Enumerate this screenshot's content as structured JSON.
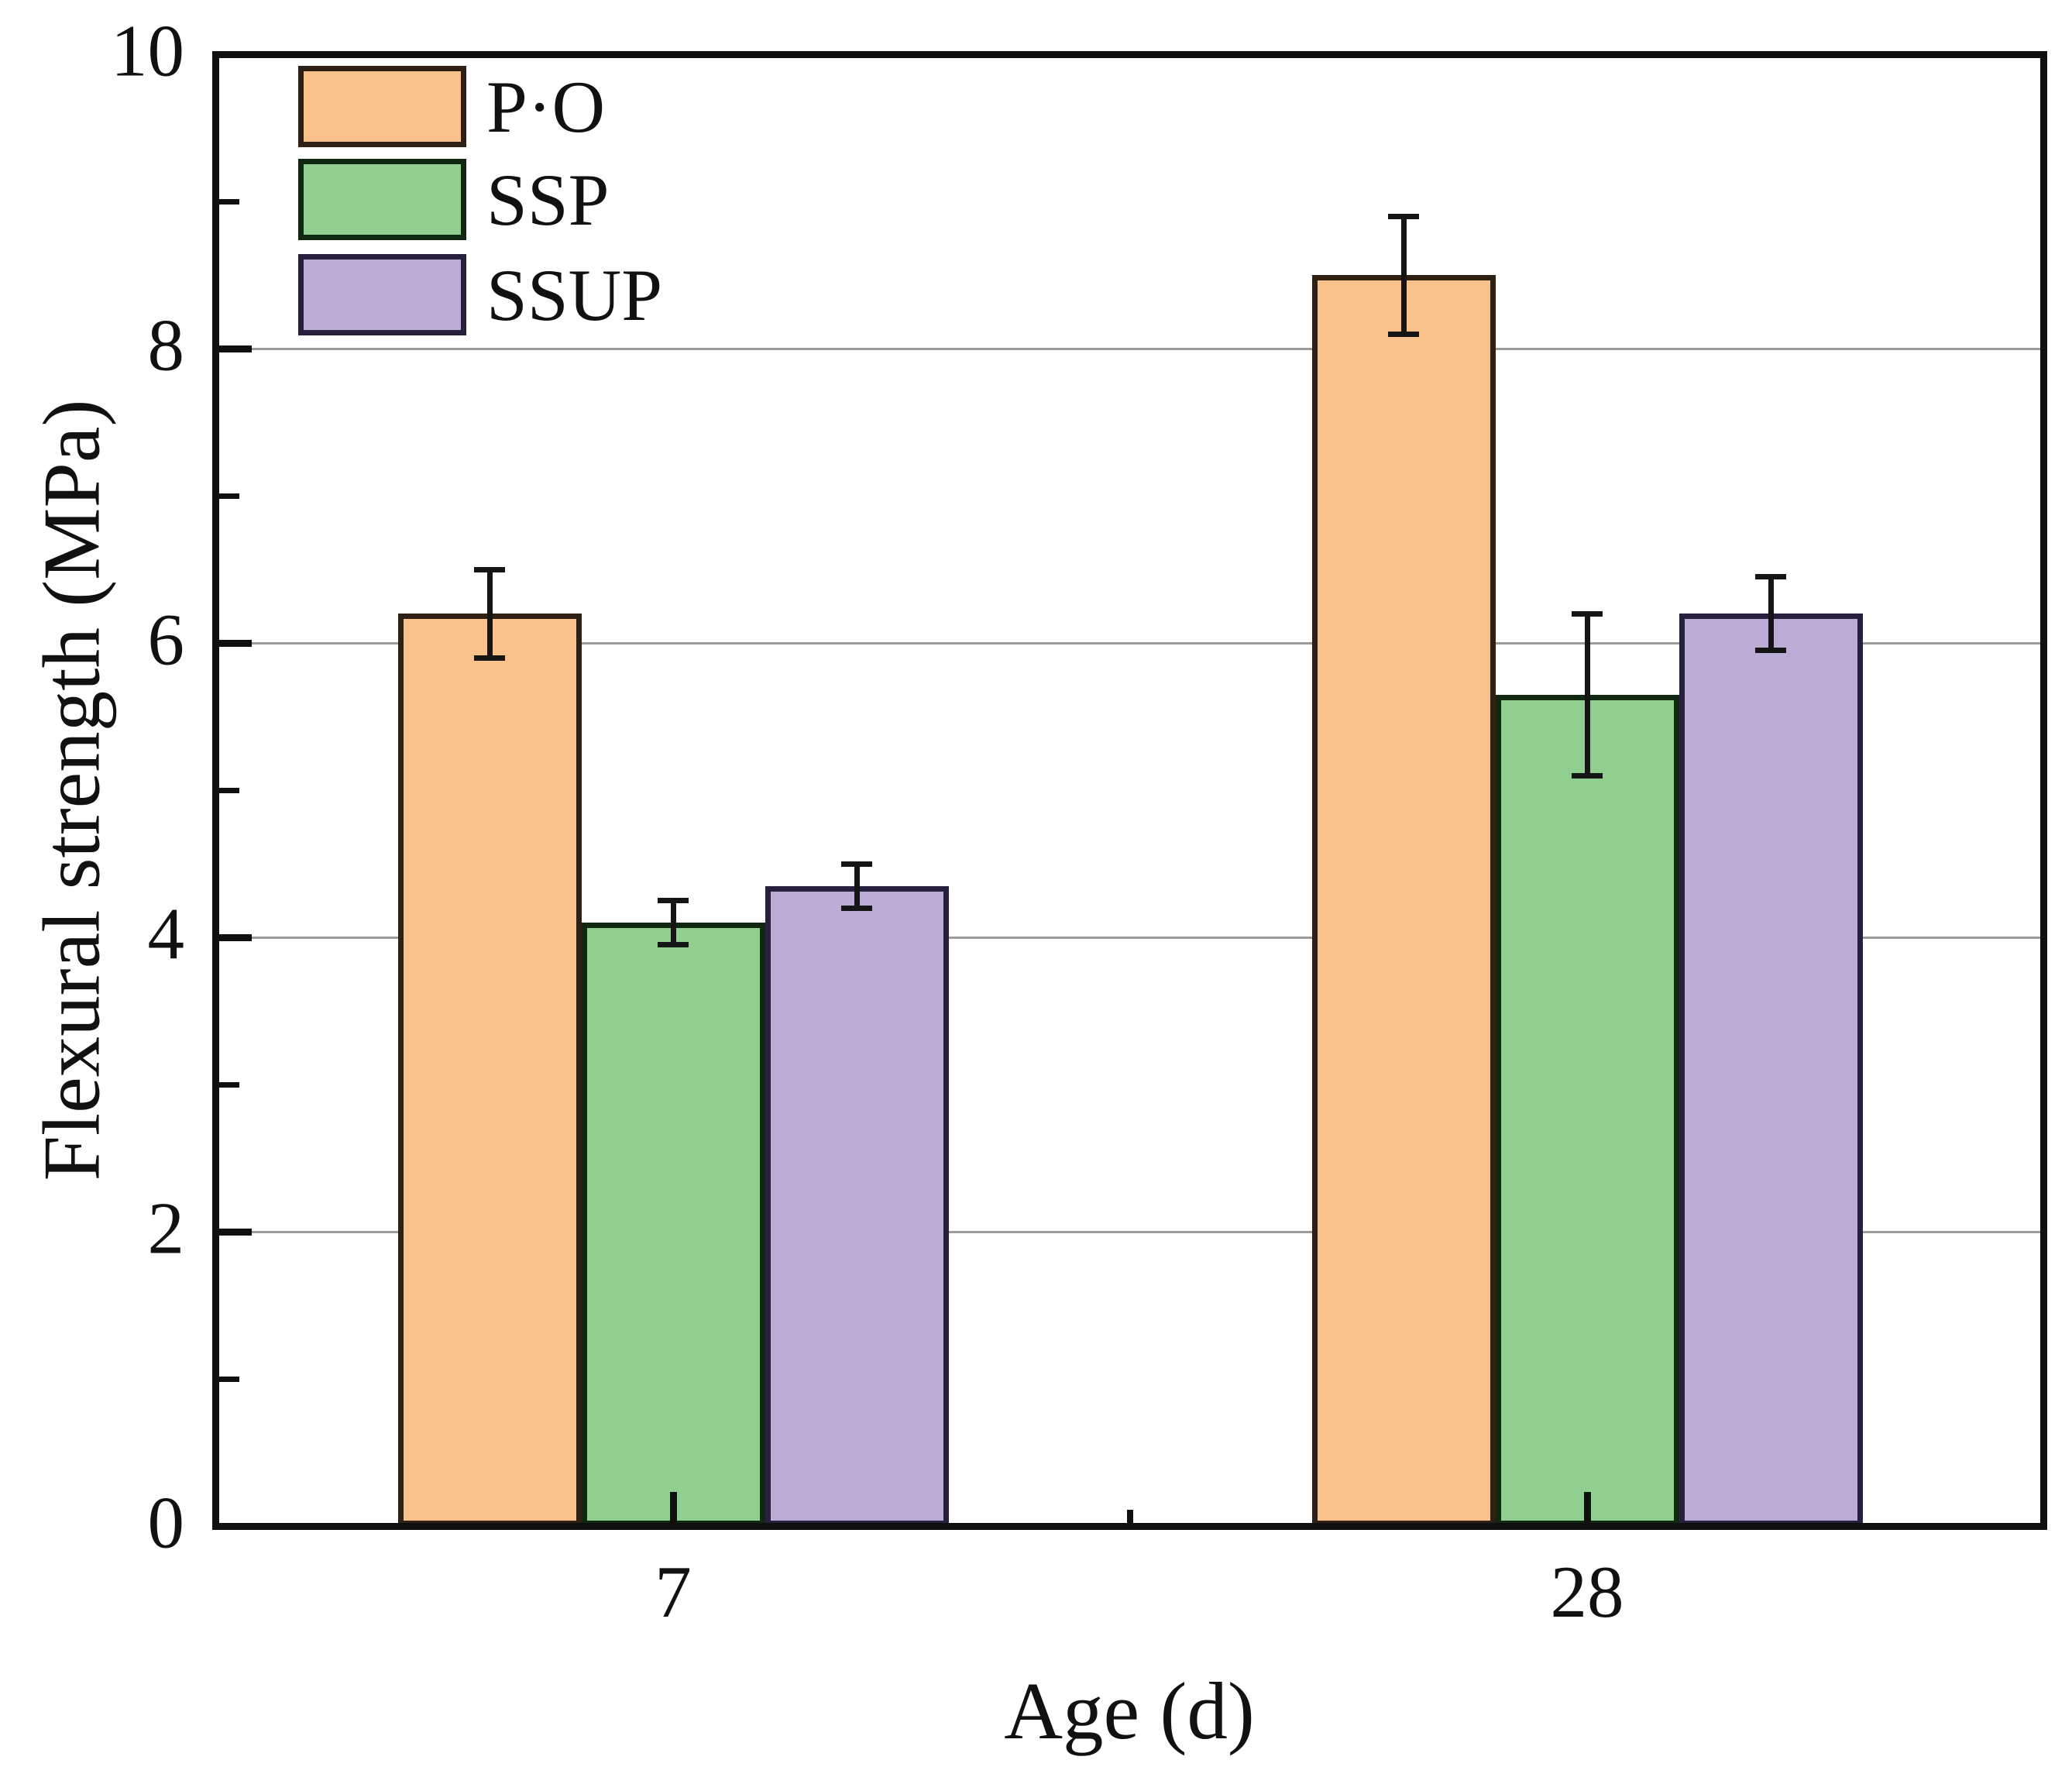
{
  "figure": {
    "background": "#FFFFFF",
    "axis_color": "#0F0F0F",
    "grid_color": "#9B9B9B",
    "text_color": "#111111",
    "error_bar_color": "#151515"
  },
  "chart_data": {
    "type": "bar",
    "title": "",
    "xlabel": "Age (d)",
    "ylabel": "Flexural strength (MPa)",
    "categories": [
      "7",
      "28"
    ],
    "series": [
      {
        "name": "P·O",
        "fill": "#F9C28D",
        "edge": "#2E2014",
        "values": [
          6.2,
          8.5
        ],
        "errors": [
          0.3,
          0.4
        ]
      },
      {
        "name": "SSP",
        "fill": "#91CF91",
        "edge": "#102810",
        "values": [
          4.1,
          5.65
        ],
        "errors": [
          0.15,
          0.55
        ]
      },
      {
        "name": "SSUP",
        "fill": "#BAACD4",
        "edge": "#26203C",
        "values": [
          4.35,
          6.2
        ],
        "errors": [
          0.15,
          0.25
        ]
      }
    ],
    "ylim": [
      0,
      10
    ],
    "y_tick_labels": [
      "0",
      "2",
      "4",
      "6",
      "8",
      "10"
    ],
    "y_major_ticks": [
      0,
      2,
      4,
      6,
      8,
      10
    ],
    "y_minor_ticks": [
      1,
      3,
      5,
      7,
      9
    ],
    "grid_values": [
      2,
      4,
      6,
      8
    ],
    "grid": "horizontal-major",
    "legend_position": "top-left",
    "legend_entries": [
      "P·O",
      "SSP",
      "SSUP"
    ]
  }
}
